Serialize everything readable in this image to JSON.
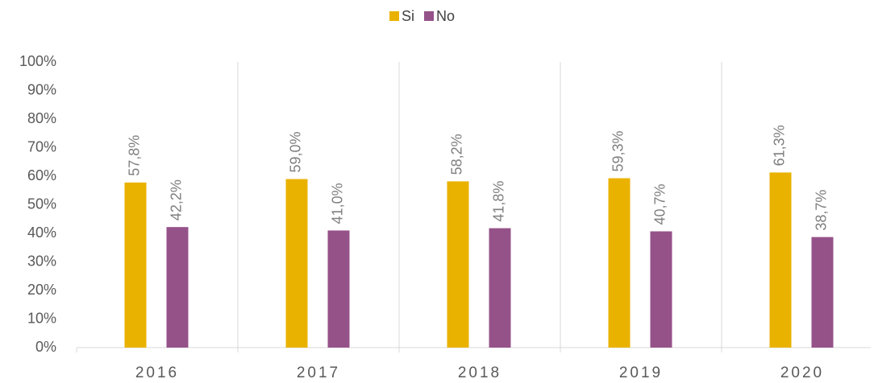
{
  "chart_data": {
    "type": "bar",
    "categories": [
      "2016",
      "2017",
      "2018",
      "2019",
      "2020"
    ],
    "series": [
      {
        "name": "Si",
        "color": "#eab200",
        "values": [
          57.8,
          59.0,
          58.2,
          59.3,
          61.3
        ],
        "value_labels": [
          "57,8%",
          "59,0%",
          "58,2%",
          "59,3%",
          "61,3%"
        ]
      },
      {
        "name": "No",
        "color": "#955289",
        "values": [
          42.2,
          41.0,
          41.8,
          40.7,
          38.7
        ],
        "value_labels": [
          "42,2%",
          "41,0%",
          "41,8%",
          "40,7%",
          "38,7%"
        ]
      }
    ],
    "ylim": [
      0,
      100
    ],
    "yticks": [
      {
        "value": 0,
        "label": "0%"
      },
      {
        "value": 10,
        "label": "10%"
      },
      {
        "value": 20,
        "label": "20%"
      },
      {
        "value": 30,
        "label": "30%"
      },
      {
        "value": 40,
        "label": "40%"
      },
      {
        "value": 50,
        "label": "50%"
      },
      {
        "value": 60,
        "label": "60%"
      },
      {
        "value": 70,
        "label": "70%"
      },
      {
        "value": 80,
        "label": "80%"
      },
      {
        "value": 90,
        "label": "90%"
      },
      {
        "value": 100,
        "label": "100%"
      }
    ],
    "legend": "top"
  }
}
